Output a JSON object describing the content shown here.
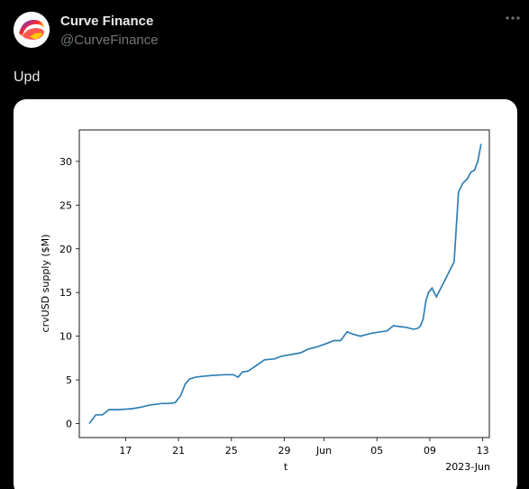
{
  "author": {
    "name": "Curve Finance",
    "handle": "@CurveFinance"
  },
  "tweet": {
    "text": "Upd",
    "more_icon": "more-horizontal-icon"
  },
  "colors": {
    "background": "#000000",
    "line": "#2f7fb5",
    "card": "#ffffff"
  },
  "chart_data": {
    "type": "line",
    "xlabel": "t",
    "ylabel": "crvUSD supply ($M)",
    "x_offset_label": "2023-Jun",
    "ylim": [
      -1.6,
      33.6
    ],
    "y_ticks": [
      0,
      5,
      10,
      15,
      20,
      25,
      30
    ],
    "x_ticks": [
      "17",
      "21",
      "25",
      "29",
      "Jun",
      "05",
      "09",
      "13"
    ],
    "grid": false,
    "series": [
      {
        "x": [
          "2023-05-14",
          "2023-05-14",
          "2023-05-15",
          "2023-05-15",
          "2023-05-16",
          "2023-05-17",
          "2023-05-18",
          "2023-05-18",
          "2023-05-19",
          "2023-05-19",
          "2023-05-20",
          "2023-05-20",
          "2023-05-21",
          "2023-05-21",
          "2023-05-21",
          "2023-05-22",
          "2023-05-22",
          "2023-05-23",
          "2023-05-24",
          "2023-05-25",
          "2023-05-25",
          "2023-05-25",
          "2023-05-26",
          "2023-05-26",
          "2023-05-27",
          "2023-05-28",
          "2023-05-28",
          "2023-05-29",
          "2023-05-30",
          "2023-05-30",
          "2023-05-31",
          "2023-06-01",
          "2023-06-01",
          "2023-06-02",
          "2023-06-02",
          "2023-06-03",
          "2023-06-03",
          "2023-06-04",
          "2023-06-05",
          "2023-06-05",
          "2023-06-06",
          "2023-06-06",
          "2023-06-07",
          "2023-06-07",
          "2023-06-08",
          "2023-06-08",
          "2023-06-08",
          "2023-06-08",
          "2023-06-08",
          "2023-06-09",
          "2023-06-09",
          "2023-06-09",
          "2023-06-10",
          "2023-06-10",
          "2023-06-10",
          "2023-06-11",
          "2023-06-11",
          "2023-06-11",
          "2023-06-12",
          "2023-06-12",
          "2023-06-12",
          "2023-06-12"
        ],
        "y": [
          0.0,
          1.0,
          1.0,
          1.6,
          1.6,
          1.7,
          1.9,
          2.1,
          2.2,
          2.3,
          2.3,
          2.4,
          3.2,
          4.5,
          5.1,
          5.3,
          5.4,
          5.5,
          5.6,
          5.6,
          5.3,
          5.9,
          6.0,
          6.5,
          7.3,
          7.4,
          7.7,
          7.9,
          8.1,
          8.5,
          8.8,
          9.2,
          9.5,
          9.5,
          10.5,
          10.2,
          10.0,
          10.3,
          10.5,
          10.6,
          11.2,
          11.1,
          11.0,
          10.8,
          10.9,
          11.2,
          12.0,
          14.0,
          15.0,
          15.5,
          14.5,
          15.5,
          16.5,
          17.5,
          18.5,
          26.5,
          27.5,
          28.0,
          28.8,
          29.0,
          30.0,
          32.0
        ]
      }
    ]
  }
}
